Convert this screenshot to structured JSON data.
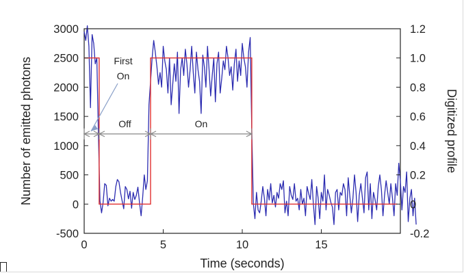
{
  "chart_data": {
    "type": "line",
    "xlabel": "Time (seconds)",
    "ylabel": "Number of emitted photons",
    "y2label": "Digitized profile",
    "xlim": [
      0,
      20
    ],
    "ylim": [
      -500,
      3000
    ],
    "y2lim": [
      -0.2,
      1.2
    ],
    "x_ticks": [
      0,
      5,
      10,
      15
    ],
    "y_ticks": [
      -500,
      0,
      500,
      1000,
      1500,
      2000,
      2500,
      3000
    ],
    "y2_ticks": [
      -0.2,
      0,
      0.2,
      0.4,
      0.6,
      0.8,
      1.0,
      1.2
    ],
    "y2_tick_labels": [
      "-0.2",
      "0",
      "0.2",
      "0.4",
      "0.6",
      "0.8",
      "1.0",
      "1.2"
    ],
    "grid": false,
    "series": [
      {
        "color": "#2b2bb0",
        "dt": 0.1,
        "values": [
          2950,
          2800,
          3050,
          2700,
          1650,
          2900,
          2750,
          2400,
          2500,
          1200,
          50,
          -150,
          30,
          350,
          320,
          -30,
          100,
          50,
          80,
          50,
          300,
          420,
          380,
          200,
          60,
          -80,
          300,
          250,
          90,
          220,
          -70,
          200,
          80,
          150,
          290,
          30,
          -200,
          120,
          500,
          250,
          400,
          1700,
          2100,
          2500,
          2800,
          2600,
          2350,
          2050,
          2250,
          2000,
          2700,
          2450,
          2300,
          1900,
          2500,
          1700,
          2050,
          2400,
          2100,
          2600,
          1550,
          2300,
          2500,
          2200,
          2650,
          2400,
          2000,
          2300,
          2700,
          2250,
          1900,
          2600,
          2300,
          2100,
          1550,
          2550,
          2350,
          2000,
          2700,
          2300,
          1850,
          2200,
          2500,
          1750,
          2400,
          2600,
          1900,
          2150,
          2450,
          2300,
          2700,
          2500,
          2200,
          2350,
          1950,
          2400,
          2650,
          2100,
          2450,
          2200,
          2750,
          2500,
          2350,
          2000,
          2600,
          2850,
          1250,
          10,
          -250,
          200,
          -100,
          -150,
          50,
          300,
          100,
          -200,
          250,
          70,
          350,
          20,
          150,
          -50,
          200,
          100,
          350,
          250,
          400,
          -150,
          50,
          -200,
          300,
          150,
          80,
          350,
          50,
          100,
          -100,
          250,
          0,
          100,
          -200,
          300,
          180,
          80,
          420,
          0,
          -350,
          300,
          100,
          -250,
          200,
          50,
          500,
          -100,
          250,
          150,
          30,
          -50,
          -350,
          200,
          250,
          -100,
          200,
          150,
          350,
          250,
          -200,
          450,
          150,
          -150,
          100,
          500,
          200,
          -300,
          150,
          350,
          100,
          -150,
          450,
          550,
          -100,
          350,
          -250,
          200,
          80,
          -100,
          300,
          500,
          250,
          -200,
          150,
          400,
          200,
          0,
          350,
          100,
          -200,
          350,
          150,
          700,
          400,
          -100,
          300,
          200,
          550,
          -300,
          100,
          250,
          -200,
          100,
          -350
        ]
      },
      {
        "color": "#e03030",
        "axis": "right",
        "step_points": [
          [
            0,
            1.0
          ],
          [
            0.95,
            1.0
          ],
          [
            0.95,
            0.0
          ],
          [
            4.2,
            0.0
          ],
          [
            4.2,
            1.0
          ],
          [
            10.6,
            1.0
          ],
          [
            10.6,
            0.0
          ],
          [
            19.8,
            0.0
          ]
        ]
      }
    ],
    "annotations": [
      {
        "text_lines": [
          "First",
          "On"
        ],
        "arrow_span": [
          0,
          0.95
        ],
        "label_at": 1200
      },
      {
        "text": "Off",
        "arrow_span": [
          0.95,
          4.2
        ],
        "label_at": 1200
      },
      {
        "text": "On",
        "arrow_span": [
          4.2,
          10.6
        ],
        "label_at": 1200
      }
    ]
  }
}
